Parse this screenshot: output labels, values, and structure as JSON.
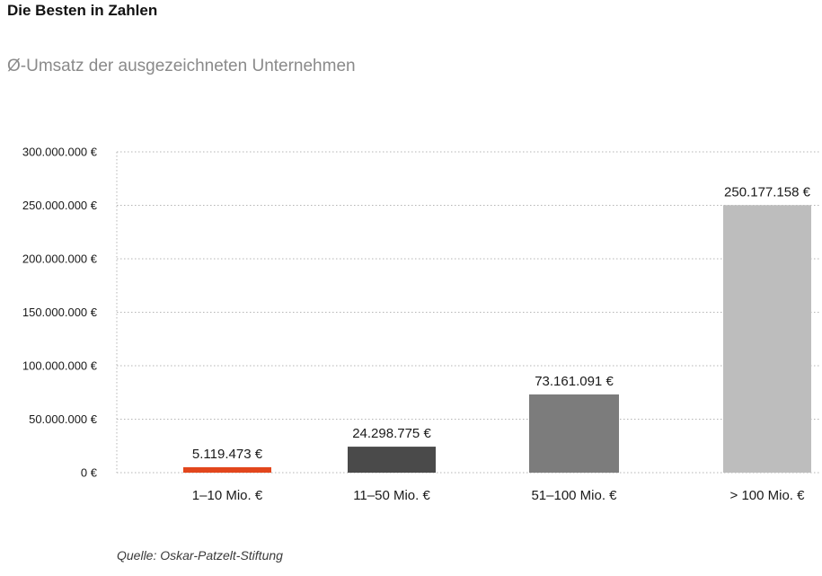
{
  "header": {
    "title": "Die Besten in Zahlen",
    "subtitle": "Ø-Umsatz der ausgezeichneten Unternehmen"
  },
  "footer": {
    "source": "Quelle: Oskar-Patzelt-Stiftung"
  },
  "chart_data": {
    "type": "bar",
    "categories": [
      "1–10 Mio. €",
      "11–50 Mio. €",
      "51–100 Mio. €",
      "> 100 Mio. €"
    ],
    "values": [
      5119473,
      24298775,
      73161091,
      250177158
    ],
    "value_labels": [
      "5.119.473 €",
      "24.298.775 €",
      "73.161.091 €",
      "250.177.158 €"
    ],
    "bar_colors": [
      "#e2461c",
      "#4a4a4a",
      "#7c7c7c",
      "#bdbdbd"
    ],
    "ylim": [
      0,
      300000000
    ],
    "yticks": [
      0,
      50000000,
      100000000,
      150000000,
      200000000,
      250000000,
      300000000
    ],
    "ytick_labels": [
      "0 €",
      "50.000.000 €",
      "100.000.000 €",
      "150.000.000 €",
      "200.000.000 €",
      "250.000.000 €",
      "300.000.000 €"
    ],
    "grid": true,
    "legend": "none"
  }
}
